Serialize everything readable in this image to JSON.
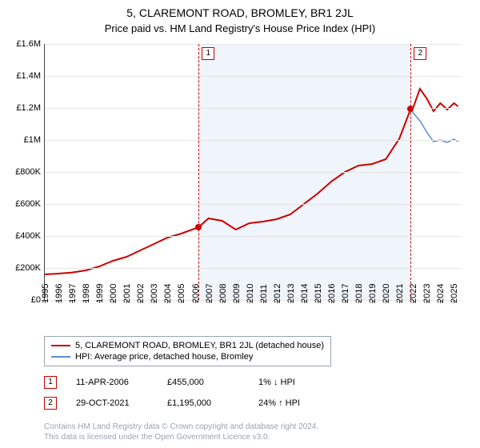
{
  "title": "5, CLAREMONT ROAD, BROMLEY, BR1 2JL",
  "subtitle": "Price paid vs. HM Land Registry's House Price Index (HPI)",
  "chart": {
    "type": "line",
    "background_color": "#ffffff",
    "grid_color": "#e6e6e6",
    "axis_color": "#444444",
    "font_size_ticks": 11,
    "x": {
      "years": [
        1995,
        1996,
        1997,
        1998,
        1999,
        2000,
        2001,
        2002,
        2003,
        2004,
        2005,
        2006,
        2007,
        2008,
        2009,
        2010,
        2011,
        2012,
        2013,
        2014,
        2015,
        2016,
        2017,
        2018,
        2019,
        2020,
        2021,
        2022,
        2023,
        2024,
        2025
      ],
      "min": 1995,
      "max": 2025.5
    },
    "y": {
      "min": 0,
      "max": 1600000,
      "step": 200000,
      "ticks": [
        "£0",
        "£200K",
        "£400K",
        "£600K",
        "£800K",
        "£1M",
        "£1.2M",
        "£1.4M",
        "£1.6M"
      ]
    },
    "shade": {
      "from_year": 2006.28,
      "to_year": 2021.83,
      "color": "#f0f4fb"
    },
    "series": [
      {
        "key": "property",
        "label": "5, CLAREMONT ROAD, BROMLEY, BR1 2JL (detached house)",
        "color": "#cc0000",
        "width": 2,
        "points": [
          [
            1995,
            160000
          ],
          [
            1996,
            165000
          ],
          [
            1997,
            172000
          ],
          [
            1998,
            185000
          ],
          [
            1999,
            210000
          ],
          [
            2000,
            245000
          ],
          [
            2001,
            270000
          ],
          [
            2002,
            310000
          ],
          [
            2003,
            350000
          ],
          [
            2004,
            390000
          ],
          [
            2005,
            415000
          ],
          [
            2006.28,
            455000
          ],
          [
            2007,
            510000
          ],
          [
            2008,
            495000
          ],
          [
            2009,
            440000
          ],
          [
            2010,
            480000
          ],
          [
            2011,
            490000
          ],
          [
            2012,
            505000
          ],
          [
            2013,
            535000
          ],
          [
            2014,
            600000
          ],
          [
            2015,
            665000
          ],
          [
            2016,
            740000
          ],
          [
            2017,
            800000
          ],
          [
            2018,
            840000
          ],
          [
            2019,
            850000
          ],
          [
            2020,
            880000
          ],
          [
            2021,
            1010000
          ],
          [
            2021.83,
            1195000
          ],
          [
            2022,
            1200000
          ],
          [
            2022.5,
            1320000
          ],
          [
            2023,
            1260000
          ],
          [
            2023.5,
            1180000
          ],
          [
            2024,
            1230000
          ],
          [
            2024.5,
            1190000
          ],
          [
            2025,
            1230000
          ],
          [
            2025.3,
            1210000
          ]
        ]
      },
      {
        "key": "hpi",
        "label": "HPI: Average price, detached house, Bromley",
        "color": "#5b8bd4",
        "width": 1.5,
        "points": [
          [
            2021.83,
            1195000
          ],
          [
            2022,
            1170000
          ],
          [
            2022.5,
            1120000
          ],
          [
            2023,
            1050000
          ],
          [
            2023.5,
            990000
          ],
          [
            2024,
            1000000
          ],
          [
            2024.5,
            985000
          ],
          [
            2025,
            1005000
          ],
          [
            2025.3,
            990000
          ]
        ]
      }
    ],
    "transactions": [
      {
        "n": "1",
        "year": 2006.28,
        "price": 455000,
        "date": "11-APR-2006",
        "price_str": "£455,000",
        "pct": "1%",
        "dir": "↓",
        "dir_label": "HPI"
      },
      {
        "n": "2",
        "year": 2021.83,
        "price": 1195000,
        "date": "29-OCT-2021",
        "price_str": "£1,195,000",
        "pct": "24%",
        "dir": "↑",
        "dir_label": "HPI"
      }
    ]
  },
  "attribution": {
    "line1": "Contains HM Land Registry data © Crown copyright and database right 2024.",
    "line2": "This data is licensed under the Open Government Licence v3.0."
  }
}
